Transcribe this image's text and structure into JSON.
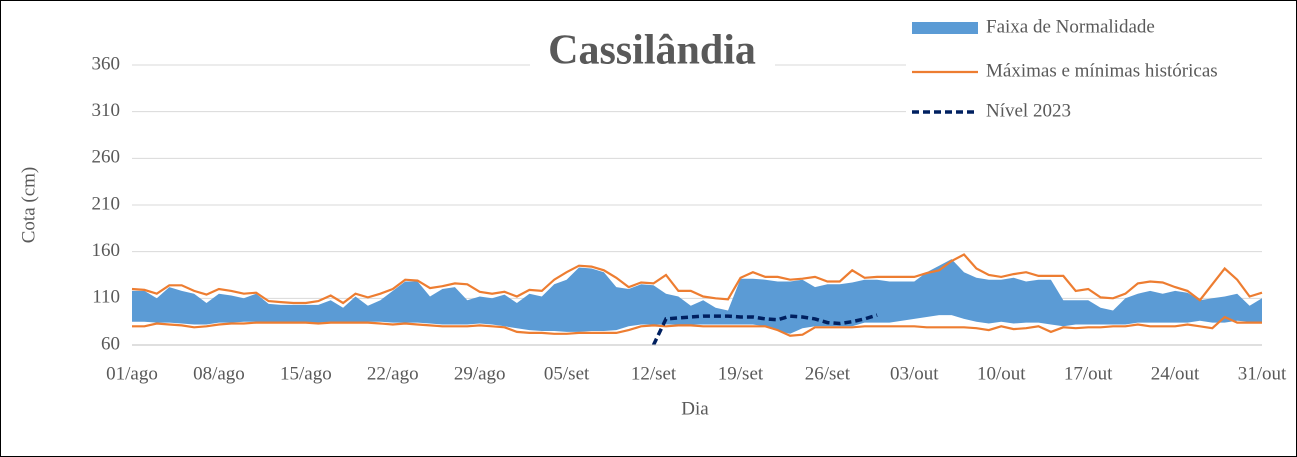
{
  "chart_data": {
    "type": "line",
    "title": "Cassilândia",
    "xlabel": "Dia",
    "ylabel": "Cota (cm)",
    "categories": [
      "01/ago",
      null,
      null,
      null,
      null,
      null,
      null,
      "08/ago",
      null,
      null,
      null,
      null,
      null,
      null,
      "15/ago",
      null,
      null,
      null,
      null,
      null,
      null,
      "22/ago",
      null,
      null,
      null,
      null,
      null,
      null,
      "29/ago",
      null,
      null,
      null,
      null,
      null,
      null,
      "05/set",
      null,
      null,
      null,
      null,
      null,
      null,
      "12/set",
      null,
      null,
      null,
      null,
      null,
      null,
      "19/set",
      null,
      null,
      null,
      null,
      null,
      null,
      "26/set",
      null,
      null,
      null,
      null,
      null,
      null,
      "03/out",
      null,
      null,
      null,
      null,
      null,
      null,
      "10/out",
      null,
      null,
      null,
      null,
      null,
      null,
      "17/out",
      null,
      null,
      null,
      null,
      null,
      null,
      "24/out",
      null,
      null,
      null,
      null,
      null,
      null,
      "31/out"
    ],
    "ylim": [
      60,
      360
    ],
    "yticks": [
      60,
      110,
      160,
      210,
      260,
      310,
      360
    ],
    "grid": true,
    "legend": "top-right",
    "series": [
      {
        "name": "Faixa de Normalidade",
        "color": "#5b9bd5",
        "kind": "band",
        "values": [
          118,
          118,
          110,
          122,
          118,
          115,
          105,
          115,
          113,
          110,
          115,
          104,
          103,
          103,
          103,
          103,
          108,
          100,
          112,
          102,
          108,
          118,
          128,
          128,
          112,
          120,
          122,
          108,
          112,
          110,
          114,
          105,
          115,
          112,
          125,
          130,
          143,
          142,
          138,
          122,
          120,
          125,
          124,
          115,
          112,
          102,
          108,
          100,
          97,
          131,
          131,
          130,
          128,
          128,
          130,
          122,
          125,
          125,
          127,
          130,
          130,
          128,
          128,
          128,
          138,
          145,
          152,
          138,
          132,
          130,
          130,
          132,
          128,
          130,
          130,
          108,
          108,
          108,
          100,
          97,
          110,
          115,
          118,
          115,
          118,
          116,
          108,
          110,
          112,
          115,
          102,
          110
        ],
        "lower": [
          85,
          85,
          84,
          84,
          83,
          82,
          82,
          84,
          84,
          85,
          85,
          85,
          85,
          85,
          84,
          84,
          85,
          85,
          85,
          85,
          85,
          84,
          84,
          84,
          83,
          82,
          82,
          82,
          83,
          82,
          80,
          78,
          76,
          75,
          75,
          74,
          74,
          75,
          75,
          76,
          80,
          82,
          82,
          82,
          82,
          82,
          82,
          82,
          82,
          82,
          82,
          80,
          75,
          72,
          78,
          80,
          80,
          80,
          80,
          84,
          84,
          84,
          86,
          88,
          90,
          92,
          92,
          88,
          85,
          83,
          85,
          83,
          84,
          84,
          82,
          80,
          82,
          82,
          82,
          82,
          82,
          84,
          84,
          84,
          84,
          84,
          86,
          84,
          84,
          86,
          85,
          85
        ]
      },
      {
        "name": "Máximas e mínimas históricas",
        "color": "#ed7d31",
        "kind": "lines",
        "values": [
          120,
          119,
          115,
          124,
          124,
          118,
          114,
          120,
          118,
          115,
          116,
          107,
          106,
          105,
          105,
          107,
          113,
          105,
          115,
          111,
          115,
          120,
          130,
          129,
          121,
          123,
          126,
          125,
          117,
          115,
          117,
          112,
          119,
          118,
          130,
          138,
          145,
          144,
          140,
          132,
          122,
          127,
          126,
          135,
          118,
          118,
          112,
          110,
          109,
          132,
          138,
          133,
          133,
          130,
          131,
          133,
          128,
          128,
          140,
          132,
          133,
          133,
          133,
          133,
          137,
          140,
          150,
          157,
          142,
          135,
          133,
          136,
          138,
          134,
          134,
          134,
          118,
          120,
          111,
          110,
          115,
          126,
          128,
          127,
          122,
          118,
          108,
          125,
          142,
          130,
          112,
          116
        ],
        "lower": [
          80,
          80,
          83,
          82,
          81,
          79,
          80,
          82,
          83,
          83,
          84,
          84,
          84,
          84,
          84,
          83,
          84,
          84,
          84,
          84,
          83,
          82,
          83,
          82,
          81,
          80,
          80,
          80,
          81,
          80,
          79,
          74,
          73,
          73,
          72,
          72,
          73,
          73,
          73,
          73,
          76,
          80,
          81,
          80,
          81,
          81,
          80,
          80,
          80,
          80,
          80,
          80,
          76,
          70,
          71,
          79,
          79,
          79,
          79,
          80,
          80,
          80,
          80,
          80,
          79,
          79,
          79,
          79,
          78,
          76,
          80,
          77,
          78,
          80,
          74,
          79,
          78,
          79,
          79,
          80,
          80,
          82,
          80,
          80,
          80,
          82,
          80,
          78,
          90,
          84,
          84,
          84
        ]
      },
      {
        "name": "Nível 2023",
        "color": "#002060",
        "kind": "dashed",
        "values": [
          null,
          null,
          null,
          null,
          null,
          null,
          null,
          null,
          null,
          null,
          null,
          null,
          null,
          null,
          null,
          null,
          null,
          null,
          null,
          null,
          null,
          null,
          null,
          null,
          null,
          null,
          null,
          null,
          null,
          null,
          null,
          null,
          null,
          null,
          null,
          null,
          null,
          null,
          null,
          null,
          null,
          null,
          60,
          88,
          89,
          90,
          91,
          91,
          91,
          90,
          90,
          88,
          87,
          91,
          90,
          88,
          84,
          83,
          85,
          88,
          92,
          null,
          null,
          null,
          null,
          null,
          null,
          null,
          null,
          null,
          null,
          null,
          null,
          null,
          null,
          null,
          null,
          null,
          null,
          null,
          null,
          null,
          null,
          null,
          null,
          null,
          null,
          null,
          null,
          null,
          null,
          null
        ]
      }
    ]
  }
}
